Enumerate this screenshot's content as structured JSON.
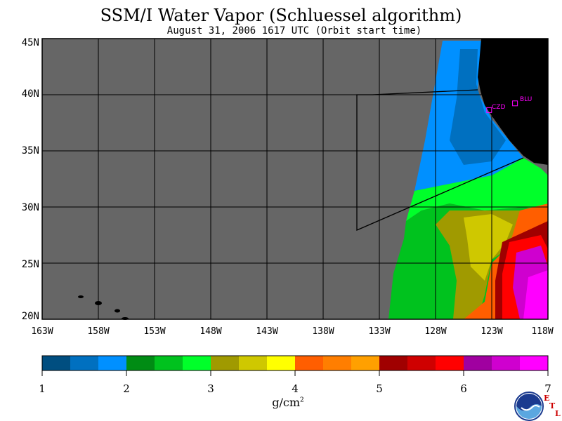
{
  "title": "SSM/I Water Vapor (Schluessel algorithm)",
  "subtitle": "August 31, 2006  1617 UTC  (Orbit start time)",
  "lat_labels": [
    "45N",
    "40N",
    "35N",
    "30N",
    "25N",
    "20N"
  ],
  "lon_labels": [
    "163W",
    "158W",
    "153W",
    "148W",
    "143W",
    "138W",
    "133W",
    "128W",
    "123W",
    "118W"
  ],
  "colorbar": {
    "ticks": [
      "1",
      "2",
      "3",
      "4",
      "5",
      "6",
      "7"
    ],
    "units": "g/cm",
    "units_exp": "2",
    "colors": [
      "#004e80",
      "#0070c0",
      "#0090ff",
      "#008c14",
      "#00c21e",
      "#00ff2a",
      "#a09a00",
      "#cfc800",
      "#ffff00",
      "#ff5e00",
      "#ff7e00",
      "#ffa000",
      "#a00000",
      "#cf0000",
      "#ff0000",
      "#a000a0",
      "#cf00cf",
      "#ff00ff"
    ]
  },
  "map": {
    "ocean_nodata_color": "#666666",
    "land_color": "#000000",
    "lat_range": [
      20,
      45
    ],
    "lon_range": [
      -163,
      -118
    ]
  },
  "stations": [
    {
      "name": "CZD",
      "lat": 38.6,
      "lon": -123.2
    },
    {
      "name": "BLU",
      "lat": 39.2,
      "lon": -120.9
    }
  ],
  "logo": {
    "name": "NOAA",
    "side_letters": [
      "E",
      "T",
      "L"
    ]
  }
}
